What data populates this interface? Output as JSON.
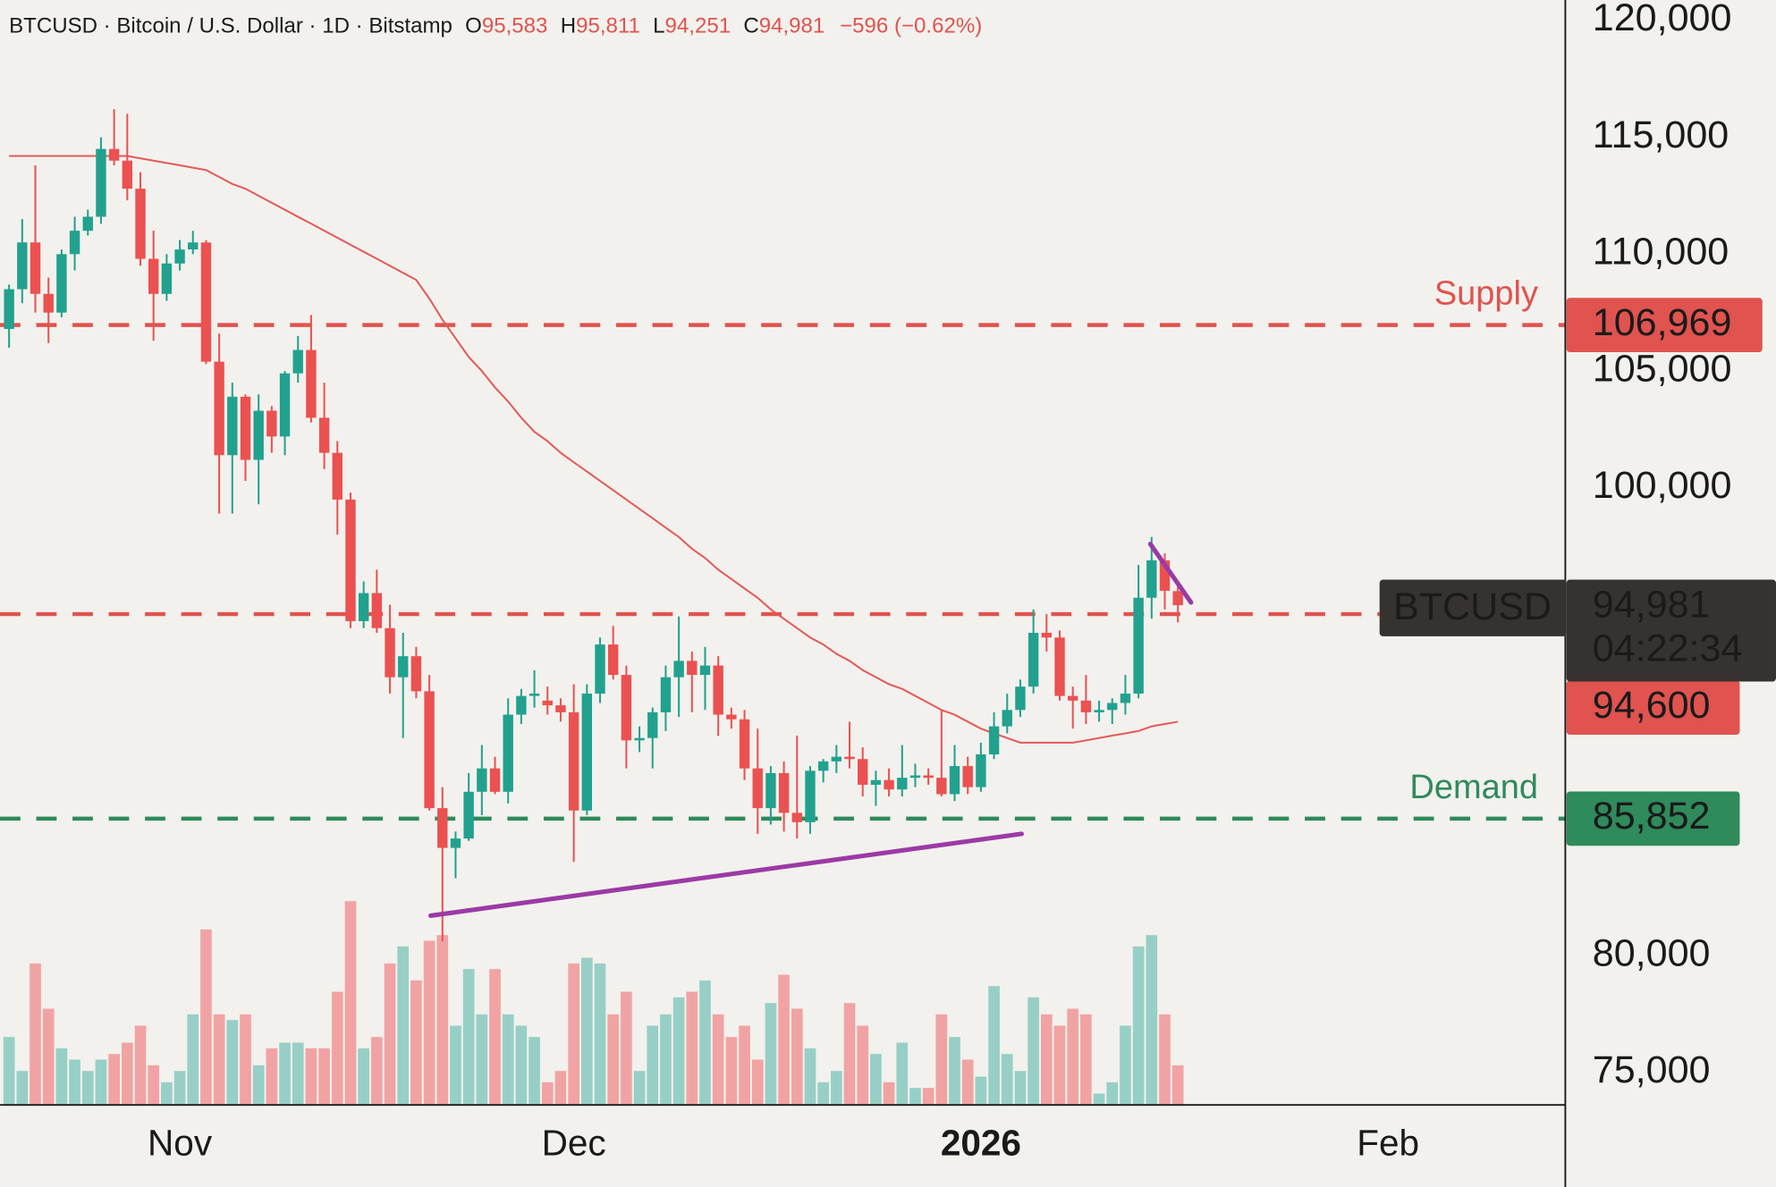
{
  "chart_data": {
    "type": "candlestick",
    "header": {
      "symbol": "BTCUSD · Bitcoin / U.S. Dollar · 1D · Bitstamp",
      "ohlc_names": [
        "O",
        "H",
        "L",
        "C"
      ],
      "ohlc_value_labels": [
        "95,583",
        "95,811",
        "94,251",
        "94,981"
      ],
      "change_label": "−596 (−0.62%)"
    },
    "up_color": "#22a18f",
    "down_color": "#eb5151",
    "volume_up_color": "#97cfc6",
    "volume_down_color": "#f1a3a3",
    "open": [
      106800,
      108500,
      110500,
      108300,
      107500,
      110000,
      111000,
      111600,
      114500,
      114000,
      112800,
      109800,
      108300,
      109600,
      110200,
      110500,
      105400,
      101400,
      103900,
      101200,
      103300,
      102200,
      104900,
      105900,
      103000,
      101500,
      99500,
      94300,
      95500,
      94000,
      91900,
      92800,
      91300,
      86300,
      84600,
      85000,
      87000,
      88000,
      87000,
      90300,
      91100,
      90900,
      90700,
      90400,
      86200,
      91200,
      93300,
      92000,
      89200,
      89300,
      90400,
      91900,
      92600,
      92000,
      92400,
      90300,
      90100,
      88000,
      86300,
      87800,
      86100,
      85700,
      87900,
      88300,
      88500,
      88400,
      87300,
      87500,
      87100,
      87600,
      87700,
      87600,
      86900,
      88100,
      87200,
      88600,
      89800,
      90500,
      91500,
      93800,
      93600,
      91100,
      90900,
      90400,
      90500,
      90800,
      91200,
      95300,
      96900,
      95583
    ],
    "high": [
      108700,
      111500,
      113800,
      109000,
      110200,
      111600,
      111900,
      115000,
      116200,
      116000,
      113500,
      111000,
      110000,
      110600,
      111000,
      110600,
      106600,
      104500,
      104000,
      104000,
      103500,
      105000,
      106500,
      107400,
      104500,
      102000,
      99800,
      96000,
      96500,
      95000,
      93800,
      93200,
      92000,
      87200,
      85300,
      87800,
      89000,
      88500,
      91000,
      91400,
      92200,
      91500,
      91000,
      91600,
      91600,
      93600,
      94100,
      92400,
      89800,
      90600,
      92400,
      94500,
      93000,
      93200,
      92800,
      90600,
      90500,
      89700,
      88100,
      88300,
      89400,
      88100,
      88400,
      89000,
      90000,
      88900,
      87900,
      88000,
      89000,
      88200,
      88000,
      90500,
      89000,
      88500,
      89100,
      90400,
      91200,
      91800,
      94800,
      94600,
      93900,
      91500,
      92000,
      90900,
      91000,
      92000,
      96700,
      97900,
      97200,
      95811
    ],
    "low": [
      106000,
      107900,
      107500,
      106200,
      107300,
      109300,
      110800,
      111300,
      113800,
      112300,
      109500,
      106300,
      108000,
      109300,
      110000,
      105300,
      98900,
      98900,
      100300,
      99300,
      101500,
      101400,
      104500,
      102800,
      100800,
      98000,
      94000,
      94000,
      93800,
      91200,
      89300,
      91000,
      86200,
      80600,
      83300,
      84900,
      86000,
      86900,
      86500,
      89900,
      90600,
      90300,
      90000,
      84000,
      86000,
      90800,
      91800,
      88000,
      88700,
      88000,
      89600,
      90200,
      90400,
      90500,
      89400,
      89700,
      87500,
      85200,
      85600,
      85300,
      85000,
      85200,
      87400,
      87800,
      88000,
      86800,
      86400,
      86800,
      86800,
      87200,
      87300,
      86800,
      86600,
      86900,
      87000,
      88400,
      89500,
      90200,
      91200,
      93000,
      90900,
      89700,
      89900,
      90000,
      89900,
      90300,
      91000,
      94400,
      94800,
      94251
    ],
    "close": [
      108500,
      110500,
      108300,
      107500,
      110000,
      111000,
      111600,
      114500,
      114000,
      112800,
      109800,
      108300,
      109600,
      110200,
      110500,
      105400,
      101400,
      103900,
      101200,
      103300,
      102200,
      104900,
      105900,
      103000,
      101500,
      99500,
      94300,
      95500,
      94000,
      91900,
      92800,
      91300,
      86300,
      84600,
      85000,
      87000,
      88000,
      87000,
      90300,
      91100,
      91200,
      90700,
      90400,
      86200,
      91200,
      93300,
      92000,
      89200,
      89300,
      90400,
      91900,
      92600,
      92000,
      92400,
      90300,
      90100,
      88000,
      86300,
      87800,
      86100,
      85700,
      87900,
      88300,
      88500,
      88400,
      87300,
      87500,
      87100,
      87600,
      87700,
      87600,
      86900,
      88100,
      87200,
      88600,
      89800,
      90500,
      91500,
      93800,
      93600,
      91100,
      90900,
      90400,
      90500,
      90800,
      91200,
      95300,
      96900,
      95600,
      94981
    ],
    "volume": [
      60,
      30,
      125,
      85,
      50,
      40,
      30,
      40,
      45,
      55,
      70,
      35,
      20,
      30,
      80,
      155,
      80,
      75,
      80,
      35,
      50,
      55,
      55,
      50,
      50,
      100,
      180,
      50,
      60,
      125,
      140,
      110,
      145,
      150,
      70,
      120,
      80,
      120,
      80,
      70,
      60,
      20,
      30,
      125,
      130,
      125,
      80,
      100,
      30,
      70,
      80,
      95,
      100,
      110,
      80,
      60,
      70,
      40,
      90,
      115,
      85,
      50,
      20,
      30,
      90,
      70,
      45,
      20,
      55,
      15,
      15,
      80,
      60,
      40,
      25,
      105,
      45,
      30,
      95,
      80,
      70,
      85,
      80,
      10,
      20,
      70,
      140,
      150,
      80,
      35
    ],
    "ma": {
      "color": "#e35a5a",
      "values": [
        114200,
        114200,
        114200,
        114200,
        114200,
        114200,
        114200,
        114200,
        114200,
        114200,
        114100,
        114000,
        113900,
        113800,
        113700,
        113600,
        113300,
        113000,
        112800,
        112500,
        112200,
        111900,
        111600,
        111300,
        111000,
        110700,
        110400,
        110100,
        109800,
        109500,
        109200,
        108900,
        108100,
        107200,
        106400,
        105600,
        105000,
        104300,
        103700,
        103000,
        102400,
        102000,
        101500,
        101100,
        100700,
        100300,
        99900,
        99500,
        99100,
        98700,
        98300,
        97900,
        97400,
        97000,
        96500,
        96100,
        95700,
        95300,
        94800,
        94400,
        94000,
        93600,
        93300,
        92900,
        92600,
        92200,
        91900,
        91600,
        91400,
        91100,
        90800,
        90500,
        90300,
        90000,
        89700,
        89500,
        89300,
        89100,
        89100,
        89100,
        89100,
        89100,
        89200,
        89300,
        89400,
        89500,
        89600,
        89800,
        89900,
        90000
      ]
    },
    "levels": [
      {
        "label": "Supply",
        "value": 106969,
        "value_label": "106,969",
        "color": "#e0534f"
      },
      {
        "value": 94600,
        "value_label": "94,600",
        "color": "#e0534f"
      },
      {
        "label": "Demand",
        "value": 85852,
        "value_label": "85,852",
        "color": "#2f8a5c"
      }
    ],
    "trendlines": [
      {
        "color": "#9b3aa5",
        "x": [
          32.1,
          77.1
        ],
        "y": [
          81700,
          85200
        ]
      },
      {
        "color": "#9b3aa5",
        "x": [
          86.9,
          90
        ],
        "y": [
          97600,
          95100
        ]
      }
    ],
    "price_label": {
      "symbol": "BTCUSD",
      "value_label": "94,981",
      "countdown": "04:22:34"
    },
    "xlim": [
      -0.69,
      118.5
    ],
    "xticks": [
      {
        "value": 13,
        "label": "Nov"
      },
      {
        "value": 43,
        "label": "Dec"
      },
      {
        "value": 74,
        "label": "2026"
      },
      {
        "value": 105,
        "label": "Feb"
      }
    ],
    "ylim": [
      73604,
      120872
    ],
    "yticks": [
      {
        "value": 75000,
        "label": "75,000"
      },
      {
        "value": 80000,
        "label": "80,000"
      },
      {
        "value": 100000,
        "label": "100,000"
      },
      {
        "value": 105000,
        "label": "105,000"
      },
      {
        "value": 110000,
        "label": "110,000"
      },
      {
        "value": 115000,
        "label": "115,000"
      },
      {
        "value": 120000,
        "label": "120,000"
      }
    ]
  }
}
